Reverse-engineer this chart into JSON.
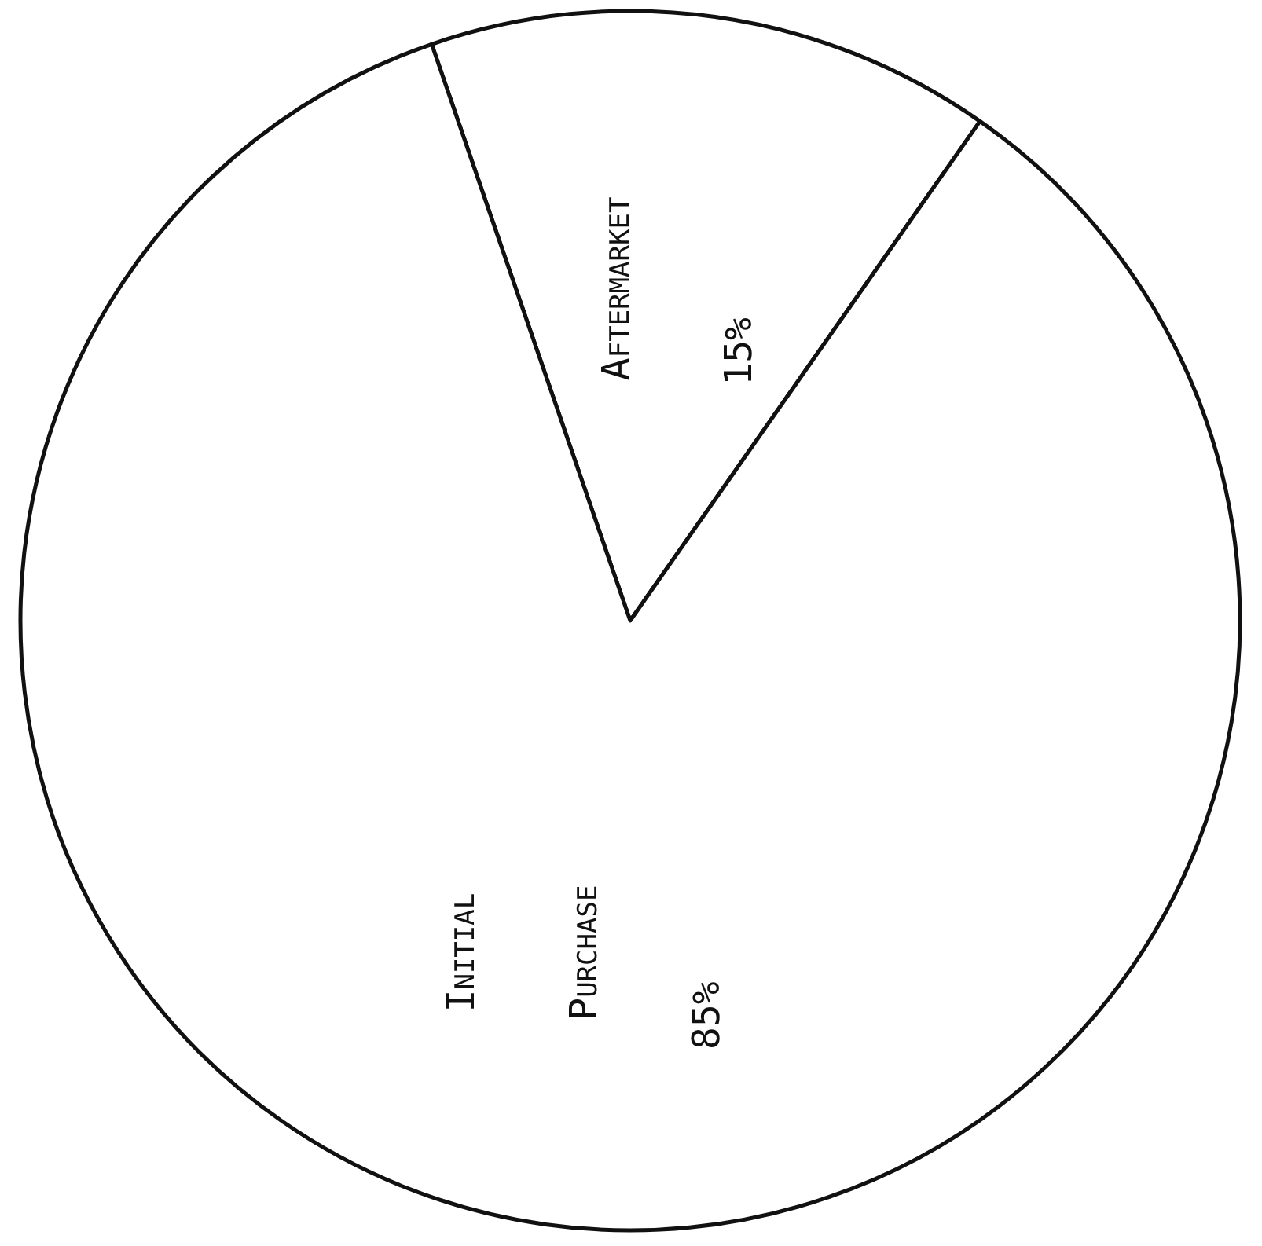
{
  "chart_data": {
    "type": "pie",
    "categories": [
      "Aftermarket",
      "Initial Purchase"
    ],
    "values": [
      15,
      85
    ],
    "colors": [
      "#ffffff",
      "#ffffff"
    ],
    "value_labels": [
      "15%",
      "85%"
    ]
  }
}
